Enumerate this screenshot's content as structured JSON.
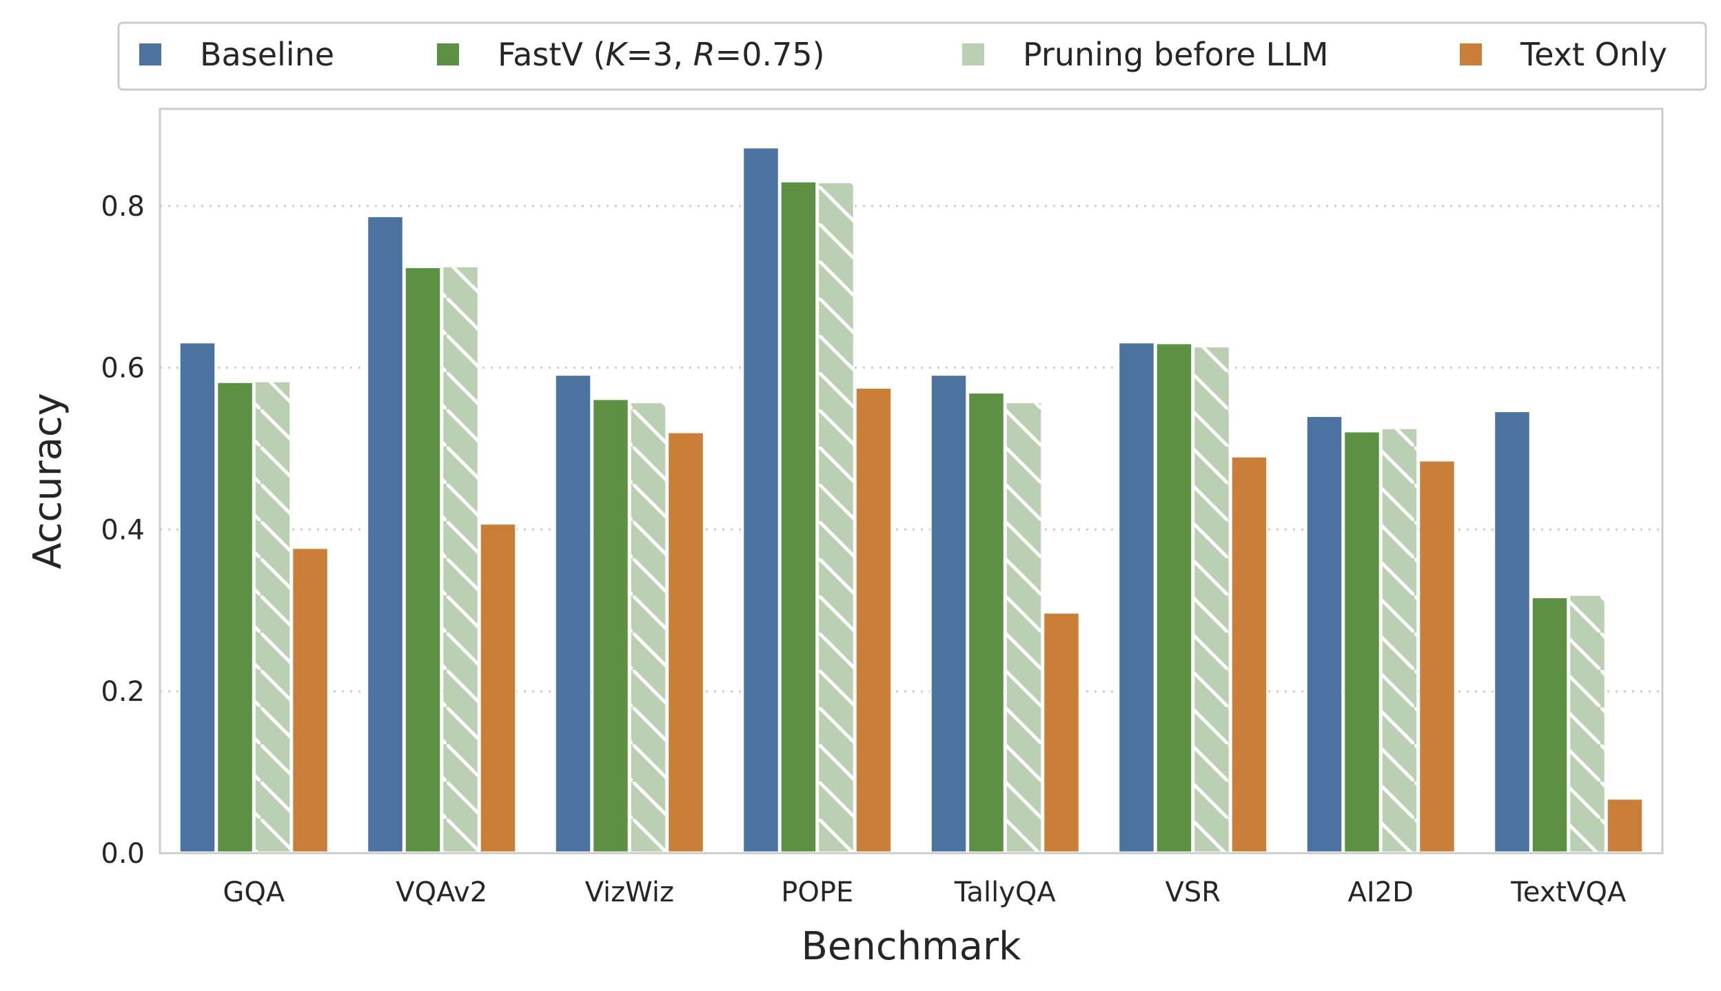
{
  "chart_data": {
    "type": "bar",
    "title": "",
    "xlabel": "Benchmark",
    "ylabel": "Accuracy",
    "ylim": [
      0,
      0.92
    ],
    "yticks": [
      0.0,
      0.2,
      0.4,
      0.6,
      0.8
    ],
    "ytick_labels": [
      "0.0",
      "0.2",
      "0.4",
      "0.6",
      "0.8"
    ],
    "grid": "horizontal dotted",
    "legend_position": "top (above plot)",
    "categories": [
      "GQA",
      "VQAv2",
      "VizWiz",
      "POPE",
      "TallyQA",
      "VSR",
      "AI2D",
      "TextVQA"
    ],
    "series": [
      {
        "name": "Baseline",
        "label_parts": [
          [
            "Baseline",
            ""
          ]
        ],
        "color": "#4c72a0",
        "hatch": false,
        "values": [
          0.631,
          0.787,
          0.591,
          0.872,
          0.591,
          0.631,
          0.54,
          0.546
        ]
      },
      {
        "name": "FastV (K=3, R=0.75)",
        "label_parts": [
          [
            "FastV (",
            ""
          ],
          [
            "K",
            "italic"
          ],
          [
            "=3, ",
            ""
          ],
          [
            "R",
            "italic"
          ],
          [
            "=0.75)",
            ""
          ]
        ],
        "color": "#5c9143",
        "hatch": false,
        "values": [
          0.582,
          0.724,
          0.561,
          0.83,
          0.569,
          0.63,
          0.521,
          0.316
        ]
      },
      {
        "name": "Pruning before LLM",
        "label_parts": [
          [
            "Pruning before LLM",
            ""
          ]
        ],
        "color": "#bbcfb3",
        "hatch": true,
        "values": [
          0.583,
          0.725,
          0.557,
          0.829,
          0.557,
          0.626,
          0.525,
          0.319
        ]
      },
      {
        "name": "Text Only",
        "label_parts": [
          [
            "Text Only",
            ""
          ]
        ],
        "color": "#c97f38",
        "hatch": false,
        "values": [
          0.377,
          0.407,
          0.52,
          0.575,
          0.297,
          0.49,
          0.485,
          0.067
        ]
      }
    ]
  }
}
